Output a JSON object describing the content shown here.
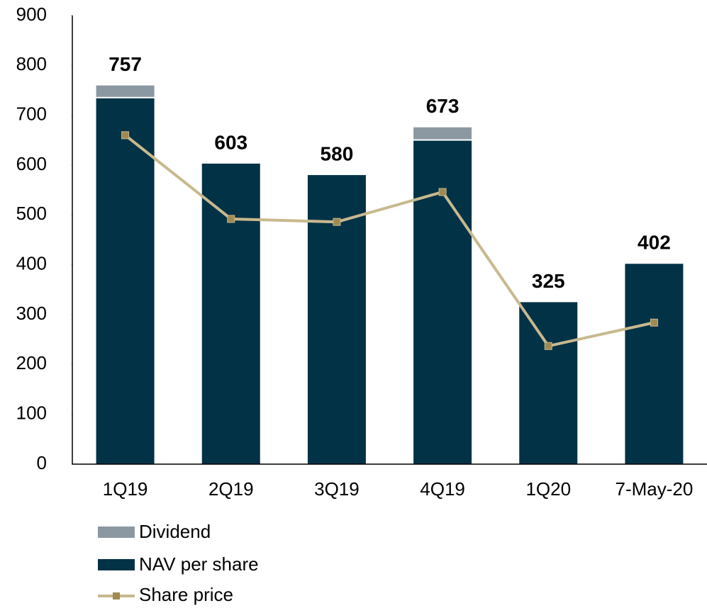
{
  "chart_data": {
    "type": "bar_line",
    "categories": [
      "1Q19",
      "2Q19",
      "3Q19",
      "4Q19",
      "1Q20",
      "7-May-20"
    ],
    "series": [
      {
        "name": "Dividend",
        "color": "#8c98a1",
        "values": [
          23,
          null,
          null,
          24,
          null,
          null
        ]
      },
      {
        "name": "NAV per share",
        "color": "#023246",
        "values": [
          734,
          603,
          580,
          649,
          325,
          402
        ]
      },
      {
        "name": "Share price",
        "color": "#c8b98e",
        "marker_color": "#9e8a52",
        "values": [
          660,
          492,
          486,
          546,
          237,
          284
        ]
      }
    ],
    "total_labels": [
      "757",
      "603",
      "580",
      "673",
      "325",
      "402"
    ],
    "ylim": [
      0,
      900
    ],
    "yticks": [
      0,
      100,
      200,
      300,
      400,
      500,
      600,
      700,
      800,
      900
    ]
  }
}
